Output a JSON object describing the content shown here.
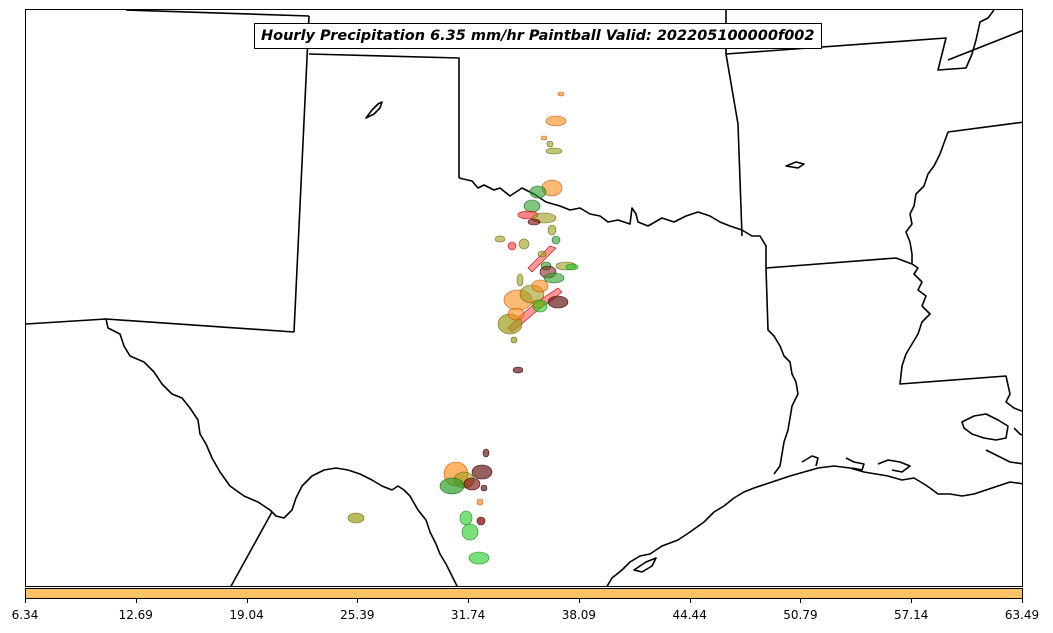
{
  "title": "Hourly Precipitation 6.35 mm/hr Paintball Valid: 202205100000f002",
  "colorbar": {
    "color": "#ffc266",
    "tick_labels": [
      "6.34",
      "12.69",
      "19.04",
      "25.39",
      "31.74",
      "38.09",
      "44.44",
      "50.79",
      "57.14",
      "63.49"
    ]
  },
  "colors": {
    "boundary": "#000000",
    "ensemble_members": [
      "#ff8c1a",
      "#cc0000",
      "#2ca02c",
      "#7a0000",
      "#9c9c1a",
      "#ff5555",
      "#22cc22",
      "#6b1a1a"
    ]
  }
}
